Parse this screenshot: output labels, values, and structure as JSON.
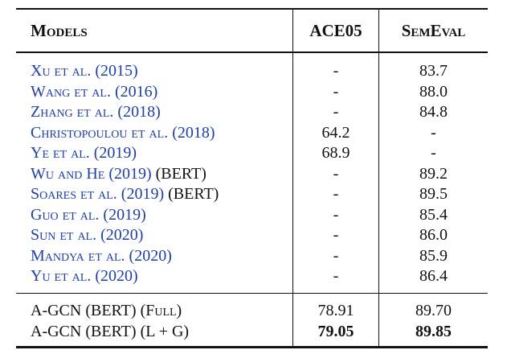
{
  "header": {
    "models": "Models",
    "ace05": "ACE05",
    "semeval": "SemEval"
  },
  "rows": [
    {
      "model": "Xu et al. (2015)",
      "suffix": "",
      "ace05": "-",
      "semeval": "83.7"
    },
    {
      "model": "Wang et al. (2016)",
      "suffix": "",
      "ace05": "-",
      "semeval": "88.0"
    },
    {
      "model": "Zhang et al. (2018)",
      "suffix": "",
      "ace05": "-",
      "semeval": "84.8"
    },
    {
      "model": "Christopoulou et al. (2018)",
      "suffix": "",
      "ace05": "64.2",
      "semeval": "-"
    },
    {
      "model": "Ye et al. (2019)",
      "suffix": "",
      "ace05": "68.9",
      "semeval": "-"
    },
    {
      "model": "Wu and He (2019)",
      "suffix": " (BERT)",
      "ace05": "-",
      "semeval": "89.2"
    },
    {
      "model": "Soares et al. (2019)",
      "suffix": " (BERT)",
      "ace05": "-",
      "semeval": "89.5"
    },
    {
      "model": "Guo et al. (2019)",
      "suffix": "",
      "ace05": "-",
      "semeval": "85.4"
    },
    {
      "model": "Sun et al. (2020)",
      "suffix": "",
      "ace05": "-",
      "semeval": "86.0"
    },
    {
      "model": "Mandya et al. (2020)",
      "suffix": "",
      "ace05": "-",
      "semeval": "85.9"
    },
    {
      "model": "Yu et al. (2020)",
      "suffix": "",
      "ace05": "-",
      "semeval": "86.4"
    }
  ],
  "ours": [
    {
      "model": "A-GCN (BERT) (Full)",
      "ace05": "78.91",
      "semeval": "89.70"
    },
    {
      "model": "A-GCN (BERT) (L + G)",
      "ace05": "79.05",
      "semeval": "89.85"
    }
  ]
}
